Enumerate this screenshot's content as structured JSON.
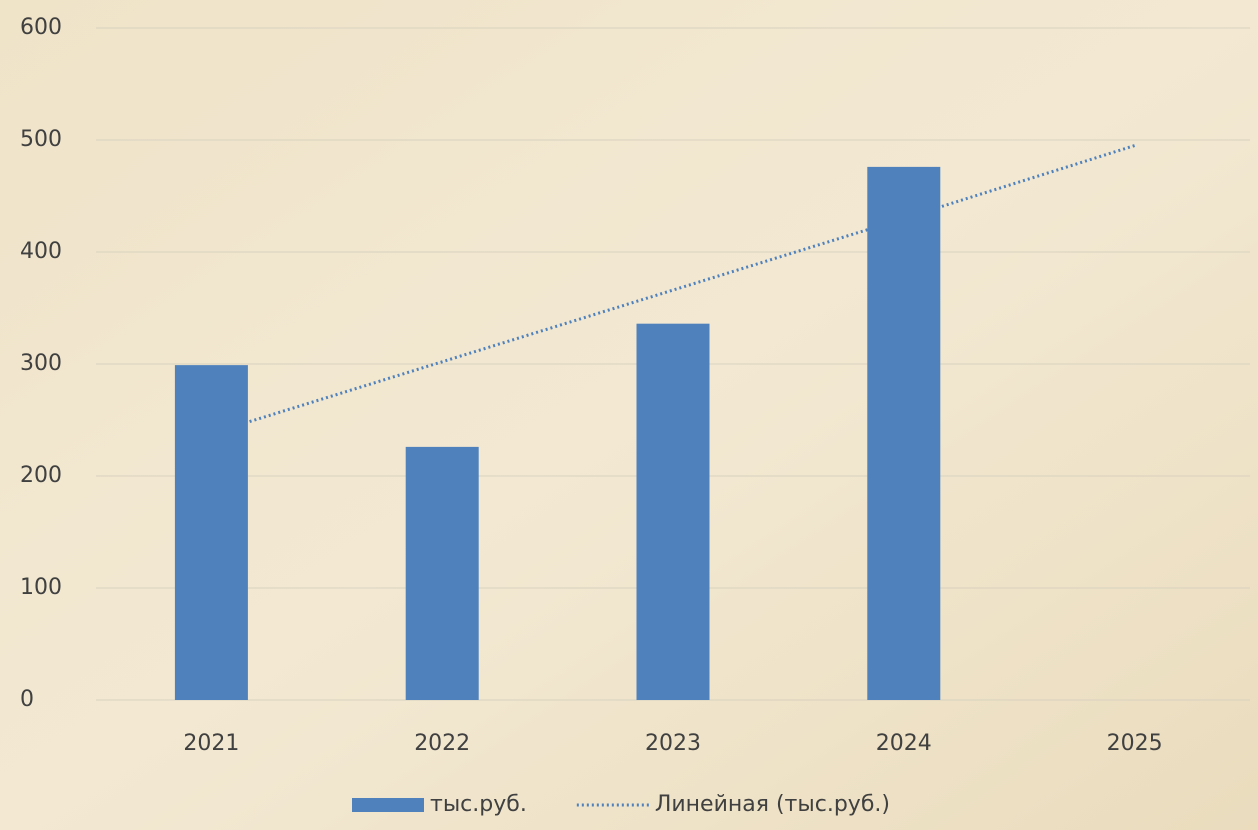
{
  "chart_data": {
    "type": "bar",
    "categories": [
      "2021",
      "2022",
      "2023",
      "2024",
      "2025"
    ],
    "series": [
      {
        "name": "тыс.руб.",
        "color": "#4f81bd",
        "values": [
          299,
          226,
          336,
          476,
          null
        ]
      },
      {
        "name": "Линейная (тыс.руб.)",
        "color": "#4f81bd",
        "type": "line",
        "dash": "dotted",
        "values": [
          238,
          302,
          366,
          430,
          495
        ]
      }
    ],
    "ylim": [
      0,
      600
    ],
    "yticks": [
      0,
      100,
      200,
      300,
      400,
      500,
      600
    ],
    "grid": true,
    "legend": "bottom"
  }
}
